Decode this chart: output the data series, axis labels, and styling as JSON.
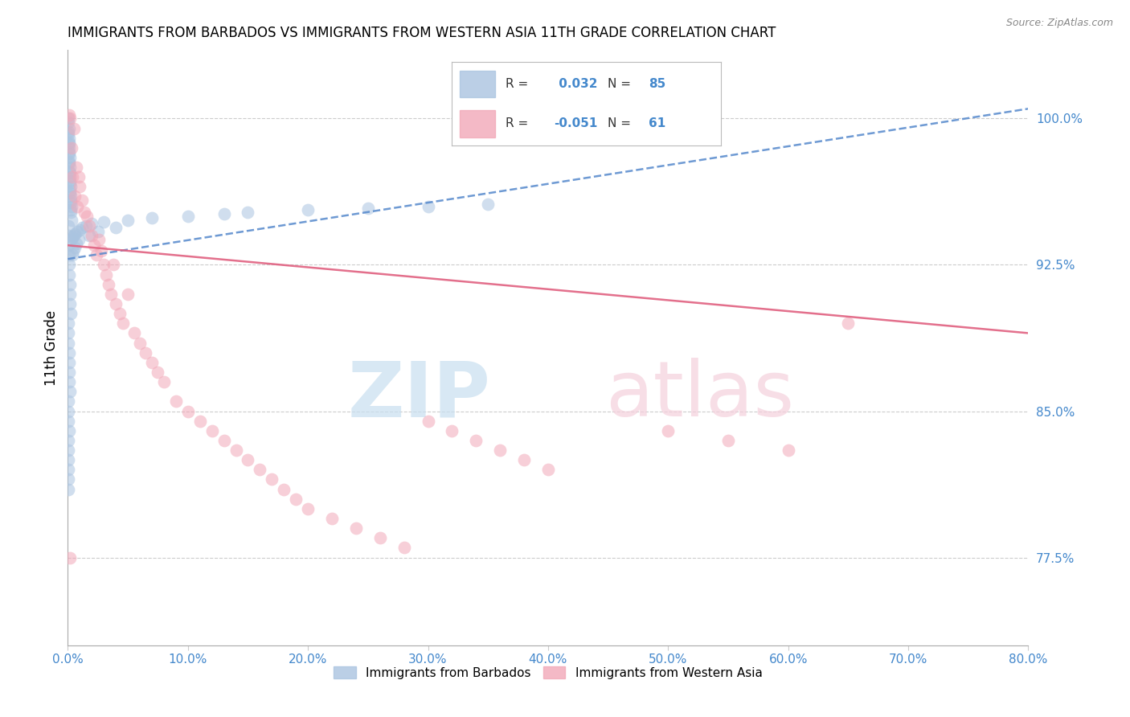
{
  "title": "IMMIGRANTS FROM BARBADOS VS IMMIGRANTS FROM WESTERN ASIA 11TH GRADE CORRELATION CHART",
  "source": "Source: ZipAtlas.com",
  "ylabel": "11th Grade",
  "x_tick_values": [
    0.0,
    10.0,
    20.0,
    30.0,
    40.0,
    50.0,
    60.0,
    70.0,
    80.0
  ],
  "y_tick_values": [
    77.5,
    85.0,
    92.5,
    100.0
  ],
  "xlim": [
    0.0,
    80.0
  ],
  "ylim": [
    73.0,
    103.5
  ],
  "blue_R": 0.032,
  "blue_N": 85,
  "pink_R": -0.051,
  "pink_N": 61,
  "blue_color": "#aac4e0",
  "pink_color": "#f2a8b8",
  "blue_line_color": "#5588cc",
  "pink_line_color": "#e06080",
  "legend_label_blue": "Immigrants from Barbados",
  "legend_label_pink": "Immigrants from Western Asia",
  "blue_scatter_x": [
    0.05,
    0.08,
    0.1,
    0.12,
    0.15,
    0.18,
    0.2,
    0.22,
    0.25,
    0.28,
    0.05,
    0.07,
    0.09,
    0.11,
    0.13,
    0.16,
    0.19,
    0.21,
    0.24,
    0.27,
    0.06,
    0.08,
    0.1,
    0.12,
    0.14,
    0.17,
    0.2,
    0.22,
    0.25,
    0.3,
    0.05,
    0.06,
    0.07,
    0.09,
    0.11,
    0.13,
    0.15,
    0.18,
    0.2,
    0.23,
    0.05,
    0.06,
    0.07,
    0.08,
    0.1,
    0.12,
    0.14,
    0.16,
    0.05,
    0.06,
    0.07,
    0.08,
    0.05,
    0.06,
    0.07,
    0.05,
    0.06,
    0.05,
    0.3,
    0.4,
    0.5,
    0.6,
    0.8,
    1.0,
    1.2,
    1.5,
    2.0,
    3.0,
    5.0,
    7.0,
    10.0,
    13.0,
    15.0,
    20.0,
    25.0,
    30.0,
    35.0,
    1.8,
    2.5,
    4.0,
    0.35,
    0.45,
    0.55,
    0.7,
    0.9
  ],
  "blue_scatter_y": [
    100.0,
    99.5,
    99.0,
    98.5,
    98.0,
    97.5,
    97.0,
    96.5,
    96.0,
    95.5,
    99.8,
    99.2,
    98.7,
    98.2,
    97.7,
    97.2,
    96.7,
    96.2,
    95.7,
    95.2,
    99.3,
    98.8,
    98.3,
    97.8,
    97.3,
    96.8,
    96.3,
    95.8,
    95.3,
    94.8,
    94.5,
    94.0,
    93.5,
    93.0,
    92.5,
    92.0,
    91.5,
    91.0,
    90.5,
    90.0,
    89.5,
    89.0,
    88.5,
    88.0,
    87.5,
    87.0,
    86.5,
    86.0,
    85.5,
    85.0,
    84.5,
    84.0,
    83.5,
    83.0,
    82.5,
    82.0,
    81.5,
    81.0,
    93.8,
    93.9,
    94.0,
    94.1,
    94.2,
    94.3,
    94.4,
    94.5,
    94.6,
    94.7,
    94.8,
    94.9,
    95.0,
    95.1,
    95.2,
    95.3,
    95.4,
    95.5,
    95.6,
    94.0,
    94.2,
    94.4,
    93.0,
    93.2,
    93.4,
    93.6,
    93.8
  ],
  "pink_scatter_x": [
    0.1,
    0.2,
    0.3,
    0.4,
    0.5,
    0.6,
    0.7,
    0.8,
    0.9,
    1.0,
    1.2,
    1.4,
    1.6,
    1.8,
    2.0,
    2.2,
    2.4,
    2.6,
    2.8,
    3.0,
    3.2,
    3.4,
    3.6,
    3.8,
    4.0,
    4.3,
    4.6,
    5.0,
    5.5,
    6.0,
    6.5,
    7.0,
    7.5,
    8.0,
    9.0,
    10.0,
    11.0,
    12.0,
    13.0,
    14.0,
    15.0,
    16.0,
    17.0,
    18.0,
    19.0,
    20.0,
    22.0,
    24.0,
    26.0,
    28.0,
    30.0,
    32.0,
    34.0,
    36.0,
    38.0,
    40.0,
    50.0,
    55.0,
    60.0,
    65.0,
    0.15
  ],
  "pink_scatter_y": [
    100.2,
    100.0,
    98.5,
    97.0,
    99.5,
    96.0,
    97.5,
    95.5,
    97.0,
    96.5,
    95.8,
    95.2,
    95.0,
    94.5,
    94.0,
    93.5,
    93.0,
    93.8,
    93.2,
    92.5,
    92.0,
    91.5,
    91.0,
    92.5,
    90.5,
    90.0,
    89.5,
    91.0,
    89.0,
    88.5,
    88.0,
    87.5,
    87.0,
    86.5,
    85.5,
    85.0,
    84.5,
    84.0,
    83.5,
    83.0,
    82.5,
    82.0,
    81.5,
    81.0,
    80.5,
    80.0,
    79.5,
    79.0,
    78.5,
    78.0,
    84.5,
    84.0,
    83.5,
    83.0,
    82.5,
    82.0,
    84.0,
    83.5,
    83.0,
    89.5,
    77.5
  ],
  "blue_trend_x0": 0.0,
  "blue_trend_y0": 92.8,
  "blue_trend_x1": 80.0,
  "blue_trend_y1": 100.5,
  "pink_trend_x0": 0.0,
  "pink_trend_y0": 93.5,
  "pink_trend_x1": 80.0,
  "pink_trend_y1": 89.0
}
